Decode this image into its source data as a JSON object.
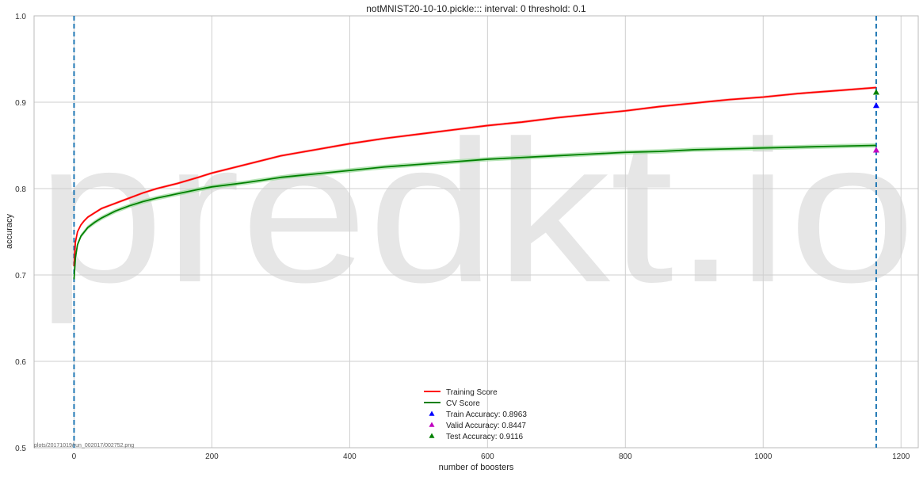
{
  "chart_data": {
    "type": "line",
    "title": "notMNIST20-10-10.pickle::: interval: 0 threshold: 0.1",
    "xlabel": "number of boosters",
    "ylabel": "accuracy",
    "xlim": [
      -58,
      1225
    ],
    "ylim": [
      0.5,
      1.0
    ],
    "xticks": [
      0,
      200,
      400,
      600,
      800,
      1000,
      1200
    ],
    "yticks": [
      0.5,
      0.6,
      0.7,
      0.8,
      0.9,
      1.0
    ],
    "xtick_labels": [
      "0",
      "200",
      "400",
      "600",
      "800",
      "1000",
      "1200"
    ],
    "ytick_labels": [
      "0.5",
      "0.6",
      "0.7",
      "0.8",
      "0.9",
      "1.0"
    ],
    "grid": true,
    "legend_position": "bottom-center",
    "watermark": "predkt.io",
    "footnote": "plots/20171019/run_002017/002752.png",
    "vlines": [
      0,
      1164
    ],
    "vline_color": "#1f77b4",
    "series": [
      {
        "name": "Training Score",
        "color": "#ff0000",
        "band_color": "#f5a0a0",
        "x": [
          0,
          2,
          5,
          10,
          15,
          20,
          30,
          40,
          50,
          60,
          80,
          100,
          120,
          150,
          180,
          200,
          250,
          300,
          350,
          400,
          450,
          500,
          550,
          600,
          650,
          700,
          750,
          800,
          850,
          900,
          950,
          1000,
          1050,
          1100,
          1164
        ],
        "y": [
          0.71,
          0.738,
          0.75,
          0.758,
          0.763,
          0.767,
          0.772,
          0.777,
          0.78,
          0.783,
          0.789,
          0.795,
          0.8,
          0.806,
          0.813,
          0.818,
          0.828,
          0.838,
          0.845,
          0.852,
          0.858,
          0.863,
          0.868,
          0.873,
          0.877,
          0.882,
          0.886,
          0.89,
          0.895,
          0.899,
          0.903,
          0.906,
          0.91,
          0.913,
          0.917
        ],
        "band": 0.0015
      },
      {
        "name": "CV Score",
        "color": "#008000",
        "band_color": "#98d898",
        "x": [
          0,
          2,
          5,
          10,
          15,
          20,
          30,
          40,
          50,
          60,
          80,
          100,
          120,
          150,
          180,
          200,
          250,
          300,
          350,
          400,
          450,
          500,
          550,
          600,
          650,
          700,
          750,
          800,
          850,
          900,
          950,
          1000,
          1050,
          1100,
          1164
        ],
        "y": [
          0.695,
          0.72,
          0.735,
          0.745,
          0.75,
          0.755,
          0.761,
          0.766,
          0.77,
          0.774,
          0.78,
          0.785,
          0.789,
          0.794,
          0.799,
          0.802,
          0.807,
          0.813,
          0.817,
          0.821,
          0.825,
          0.828,
          0.831,
          0.834,
          0.836,
          0.838,
          0.84,
          0.842,
          0.843,
          0.845,
          0.846,
          0.847,
          0.848,
          0.849,
          0.85
        ],
        "band": 0.0025
      }
    ],
    "markers": [
      {
        "name": "Train Accuracy: 0.8963",
        "x": 1164,
        "y": 0.8963,
        "color": "#0000ff"
      },
      {
        "name": "Valid Accuracy: 0.8447",
        "x": 1164,
        "y": 0.8447,
        "color": "#c000c0"
      },
      {
        "name": "Test Accuracy: 0.9116",
        "x": 1164,
        "y": 0.9116,
        "color": "#008000"
      }
    ]
  }
}
